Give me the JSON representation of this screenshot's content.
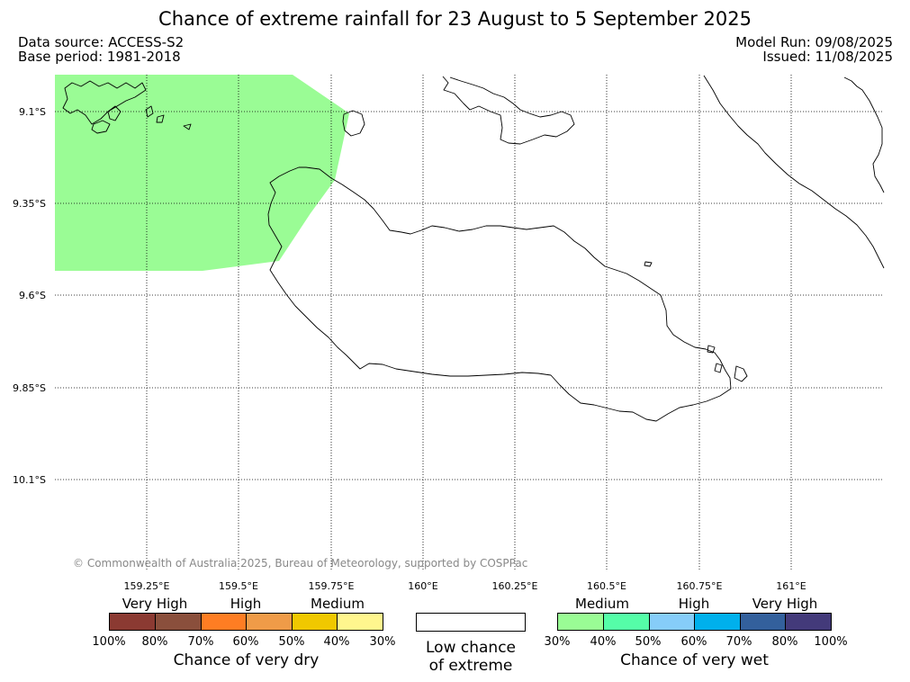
{
  "title": "Chance of extreme rainfall for 23 August to 5 September 2025",
  "data_source": "Data source: ACCESS-S2",
  "base_period": "Base period: 1981-2018",
  "model_run": "Model Run: 09/08/2025",
  "issued": "Issued: 11/08/2025",
  "copyright": "© Commonwealth of Australia 2025, Bureau of Meteorology, supported by COSPPac",
  "map": {
    "lat_labels": [
      "9.1°S",
      "9.35°S",
      "9.6°S",
      "9.85°S",
      "10.1°S"
    ],
    "lon_labels": [
      "159.25°E",
      "159.5°E",
      "159.75°E",
      "160°E",
      "160.25°E",
      "160.5°E",
      "160.75°E",
      "161°E"
    ],
    "highlight": {
      "category": "Chance of very wet",
      "level": "Medium",
      "range": "30%-40%",
      "color": "#9afc95"
    },
    "coastline_color": "#000000",
    "grid_style": "dotted"
  },
  "legend": {
    "dry": {
      "title": "Chance of very dry",
      "levels": [
        "Very High",
        "High",
        "Medium"
      ],
      "ticks": [
        "100%",
        "80%",
        "70%",
        "60%",
        "50%",
        "40%",
        "30%"
      ],
      "colors": [
        "#8b3a32",
        "#8a4f3c",
        "#fe7d23",
        "#ef9b48",
        "#f0c800",
        "#fff68e"
      ]
    },
    "neutral": {
      "line1": "Low chance",
      "line2": "of extreme",
      "color": "#ffffff"
    },
    "wet": {
      "title": "Chance of very wet",
      "levels": [
        "Medium",
        "High",
        "Very High"
      ],
      "ticks": [
        "30%",
        "40%",
        "50%",
        "60%",
        "70%",
        "80%",
        "100%"
      ],
      "colors": [
        "#9afc95",
        "#55fda8",
        "#86cdf9",
        "#00b0ec",
        "#33609c",
        "#433a7a"
      ]
    }
  }
}
